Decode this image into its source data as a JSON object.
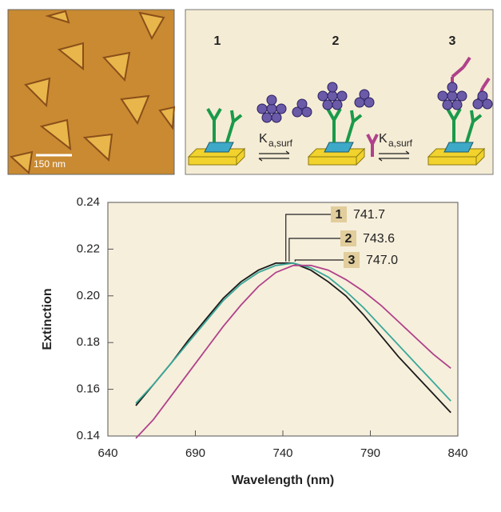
{
  "afm_image": {
    "scale_bar": "150 nm"
  },
  "diagram": {
    "steps": [
      "1",
      "2",
      "3"
    ],
    "rate_constants": [
      {
        "symbol": "K",
        "subscript": "a,surf"
      },
      {
        "symbol": "K",
        "subscript": "a,surf"
      }
    ]
  },
  "chart_data": {
    "type": "line",
    "x": [
      656,
      666,
      676,
      686,
      696,
      706,
      716,
      726,
      736,
      746,
      756,
      766,
      776,
      786,
      796,
      806,
      816,
      826,
      836
    ],
    "series": [
      {
        "color": "#1a1a1a",
        "values": [
          0.153,
          0.162,
          0.171,
          0.181,
          0.19,
          0.199,
          0.206,
          0.211,
          0.214,
          0.214,
          0.211,
          0.206,
          0.2,
          0.192,
          0.183,
          0.174,
          0.166,
          0.158,
          0.15
        ]
      },
      {
        "color": "#3aa89a",
        "values": [
          0.154,
          0.162,
          0.171,
          0.18,
          0.189,
          0.198,
          0.205,
          0.21,
          0.213,
          0.214,
          0.212,
          0.208,
          0.202,
          0.195,
          0.187,
          0.179,
          0.171,
          0.163,
          0.155
        ]
      },
      {
        "color": "#b0418a",
        "values": [
          0.139,
          0.147,
          0.157,
          0.167,
          0.177,
          0.187,
          0.196,
          0.204,
          0.21,
          0.213,
          0.213,
          0.211,
          0.207,
          0.202,
          0.196,
          0.189,
          0.182,
          0.175,
          0.169
        ]
      }
    ],
    "peaks": [
      {
        "label": "1",
        "x": 741.7,
        "x_label": "741.7"
      },
      {
        "label": "2",
        "x": 743.6,
        "x_label": "743.6"
      },
      {
        "label": "3",
        "x": 747.0,
        "x_label": "747.0"
      }
    ],
    "xlabel": "Wavelength (nm)",
    "ylabel": "Extinction",
    "xlim": [
      640,
      840
    ],
    "xticks": [
      640,
      690,
      740,
      790,
      840
    ],
    "ylim": [
      0.14,
      0.24
    ],
    "yticks": [
      0.14,
      0.16,
      0.18,
      {
        "value": 0.2,
        "label": "0.20"
      },
      0.22,
      0.24
    ],
    "background": "#f6efdc"
  }
}
